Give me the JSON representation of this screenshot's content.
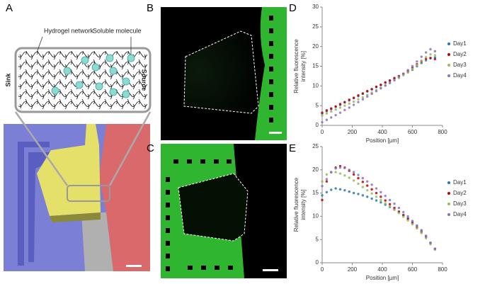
{
  "figure": {
    "panel_labels": [
      "A",
      "B",
      "C",
      "D",
      "E"
    ],
    "diagram": {
      "network_label": "Hydrogel network",
      "molecule_label": "Soluble molecule",
      "left_label": "Sink",
      "right_label": "Source"
    }
  },
  "chart_data": [
    {
      "type": "scatter",
      "xlabel": "Position [µm]",
      "ylabel": [
        "Relative fluorescence",
        "intensity [%]"
      ],
      "x": [
        0,
        30,
        60,
        90,
        120,
        150,
        180,
        210,
        240,
        270,
        300,
        330,
        360,
        390,
        420,
        450,
        480,
        510,
        540,
        570,
        600,
        630,
        660,
        690,
        720,
        750
      ],
      "xlim": [
        0,
        800
      ],
      "xticks": [
        0,
        200,
        400,
        600,
        800
      ],
      "ylim": [
        0,
        30
      ],
      "yticks": [
        0,
        5,
        10,
        15,
        20,
        25,
        30
      ],
      "series": [
        {
          "name": "Day1",
          "color": "#2e75b6",
          "values": [
            3.0,
            3.6,
            4.1,
            4.7,
            5.2,
            5.8,
            6.3,
            6.9,
            7.4,
            8.0,
            8.6,
            9.1,
            9.7,
            10.2,
            10.8,
            11.3,
            11.9,
            12.4,
            13.0,
            13.5,
            14.1,
            15.0,
            15.8,
            16.5,
            17.0,
            17.2
          ]
        },
        {
          "name": "Day2",
          "color": "#c00000",
          "values": [
            3.2,
            3.8,
            4.3,
            4.8,
            5.4,
            5.9,
            6.5,
            7.0,
            7.6,
            8.1,
            8.7,
            9.2,
            9.8,
            10.3,
            10.9,
            11.4,
            12.0,
            12.5,
            13.1,
            13.8,
            14.6,
            15.5,
            16.3,
            16.9,
            17.1,
            16.8
          ]
        },
        {
          "name": "Day3",
          "color": "#9bbb59",
          "values": [
            2.5,
            3.0,
            3.5,
            4.0,
            4.5,
            5.0,
            5.5,
            6.0,
            6.6,
            7.1,
            7.7,
            8.3,
            8.9,
            9.5,
            10.1,
            10.7,
            11.4,
            12.0,
            12.7,
            13.4,
            14.3,
            15.3,
            16.4,
            17.3,
            18.0,
            17.8
          ]
        },
        {
          "name": "Day4",
          "color": "#8e6fbf",
          "values": [
            0.8,
            1.4,
            2.0,
            2.6,
            3.2,
            3.9,
            4.5,
            5.2,
            5.9,
            6.6,
            7.3,
            8.0,
            8.7,
            9.4,
            10.1,
            10.8,
            11.5,
            12.3,
            13.1,
            14.0,
            15.0,
            16.2,
            17.4,
            18.5,
            19.3,
            18.8
          ]
        }
      ]
    },
    {
      "type": "scatter",
      "xlabel": "Position [µm]",
      "ylabel": [
        "Relative fluorescence",
        "intensity [%]"
      ],
      "x": [
        0,
        30,
        60,
        90,
        120,
        150,
        180,
        210,
        240,
        270,
        300,
        330,
        360,
        390,
        420,
        450,
        480,
        510,
        540,
        570,
        600,
        630,
        660,
        690,
        720,
        750
      ],
      "xlim": [
        0,
        800
      ],
      "xticks": [
        0,
        200,
        400,
        600,
        800
      ],
      "ylim": [
        0,
        25
      ],
      "yticks": [
        0,
        5,
        10,
        15,
        20,
        25
      ],
      "series": [
        {
          "name": "Day1",
          "color": "#2e75b6",
          "values": [
            14.5,
            15.2,
            15.7,
            16.0,
            15.8,
            15.6,
            15.3,
            15.0,
            14.8,
            14.5,
            14.2,
            13.8,
            13.4,
            13.0,
            12.5,
            12.0,
            11.5,
            10.9,
            10.3,
            9.6,
            8.8,
            8.0,
            7.0,
            5.8,
            4.3,
            3.0
          ]
        },
        {
          "name": "Day2",
          "color": "#c00000",
          "values": [
            13.5,
            17.5,
            19.5,
            20.5,
            20.8,
            20.5,
            19.8,
            19.0,
            18.2,
            17.4,
            16.6,
            15.8,
            15.0,
            14.2,
            13.4,
            12.6,
            11.8,
            11.0,
            10.2,
            9.4,
            8.5,
            7.6,
            6.6,
            5.5,
            4.2,
            3.0
          ]
        },
        {
          "name": "Day3",
          "color": "#9bbb59",
          "values": [
            17.5,
            19.0,
            19.5,
            19.5,
            19.2,
            18.8,
            18.3,
            17.7,
            17.0,
            16.3,
            15.6,
            14.9,
            14.2,
            13.5,
            12.8,
            12.1,
            11.4,
            10.7,
            9.9,
            9.1,
            8.3,
            7.4,
            6.4,
            5.3,
            4.0,
            2.8
          ]
        },
        {
          "name": "Day4",
          "color": "#8e6fbf",
          "values": [
            16.5,
            18.0,
            19.5,
            20.3,
            20.5,
            20.4,
            20.0,
            19.5,
            18.9,
            18.2,
            17.5,
            16.8,
            16.0,
            15.2,
            14.4,
            13.5,
            12.7,
            11.8,
            10.9,
            10.0,
            9.0,
            8.0,
            6.9,
            5.7,
            4.3,
            3.0
          ]
        }
      ]
    }
  ]
}
